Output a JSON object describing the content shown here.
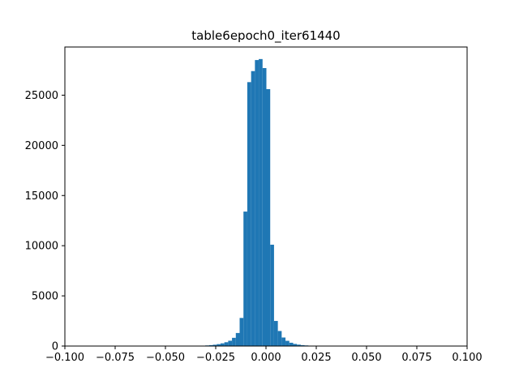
{
  "chart_data": {
    "type": "bar",
    "title": "table6epoch0_iter61440",
    "xlabel": "",
    "ylabel": "",
    "xlim": [
      -0.1,
      0.1
    ],
    "ylim": [
      0,
      29800
    ],
    "grid": false,
    "bar_color": "#1f77b4",
    "x_ticks": [
      {
        "value": -0.1,
        "label": "−0.100"
      },
      {
        "value": -0.075,
        "label": "−0.075"
      },
      {
        "value": -0.05,
        "label": "−0.050"
      },
      {
        "value": -0.025,
        "label": "−0.025"
      },
      {
        "value": 0.0,
        "label": "0.000"
      },
      {
        "value": 0.025,
        "label": "0.025"
      },
      {
        "value": 0.05,
        "label": "0.050"
      },
      {
        "value": 0.075,
        "label": "0.075"
      },
      {
        "value": 0.1,
        "label": "0.100"
      }
    ],
    "y_ticks": [
      {
        "value": 0,
        "label": "0"
      },
      {
        "value": 5000,
        "label": "5000"
      },
      {
        "value": 10000,
        "label": "10000"
      },
      {
        "value": 15000,
        "label": "15000"
      },
      {
        "value": 20000,
        "label": "20000"
      },
      {
        "value": 25000,
        "label": "25000"
      }
    ],
    "bin_width": 0.0019,
    "bins": [
      {
        "x0": -0.034,
        "count": 30
      },
      {
        "x0": -0.0321,
        "count": 40
      },
      {
        "x0": -0.0302,
        "count": 60
      },
      {
        "x0": -0.0283,
        "count": 90
      },
      {
        "x0": -0.0264,
        "count": 130
      },
      {
        "x0": -0.0245,
        "count": 190
      },
      {
        "x0": -0.0226,
        "count": 270
      },
      {
        "x0": -0.0207,
        "count": 380
      },
      {
        "x0": -0.0188,
        "count": 530
      },
      {
        "x0": -0.0169,
        "count": 820
      },
      {
        "x0": -0.015,
        "count": 1300
      },
      {
        "x0": -0.0131,
        "count": 2800
      },
      {
        "x0": -0.0112,
        "count": 13400
      },
      {
        "x0": -0.0093,
        "count": 26300
      },
      {
        "x0": -0.0074,
        "count": 27400
      },
      {
        "x0": -0.0055,
        "count": 28500
      },
      {
        "x0": -0.0036,
        "count": 28600
      },
      {
        "x0": -0.0017,
        "count": 27700
      },
      {
        "x0": 0.0002,
        "count": 25600
      },
      {
        "x0": 0.0021,
        "count": 10100
      },
      {
        "x0": 0.004,
        "count": 2500
      },
      {
        "x0": 0.0059,
        "count": 1500
      },
      {
        "x0": 0.0078,
        "count": 850
      },
      {
        "x0": 0.0097,
        "count": 520
      },
      {
        "x0": 0.0116,
        "count": 330
      },
      {
        "x0": 0.0135,
        "count": 210
      },
      {
        "x0": 0.0154,
        "count": 140
      },
      {
        "x0": 0.0173,
        "count": 90
      },
      {
        "x0": 0.0192,
        "count": 60
      },
      {
        "x0": 0.0211,
        "count": 40
      },
      {
        "x0": 0.023,
        "count": 25
      }
    ]
  }
}
